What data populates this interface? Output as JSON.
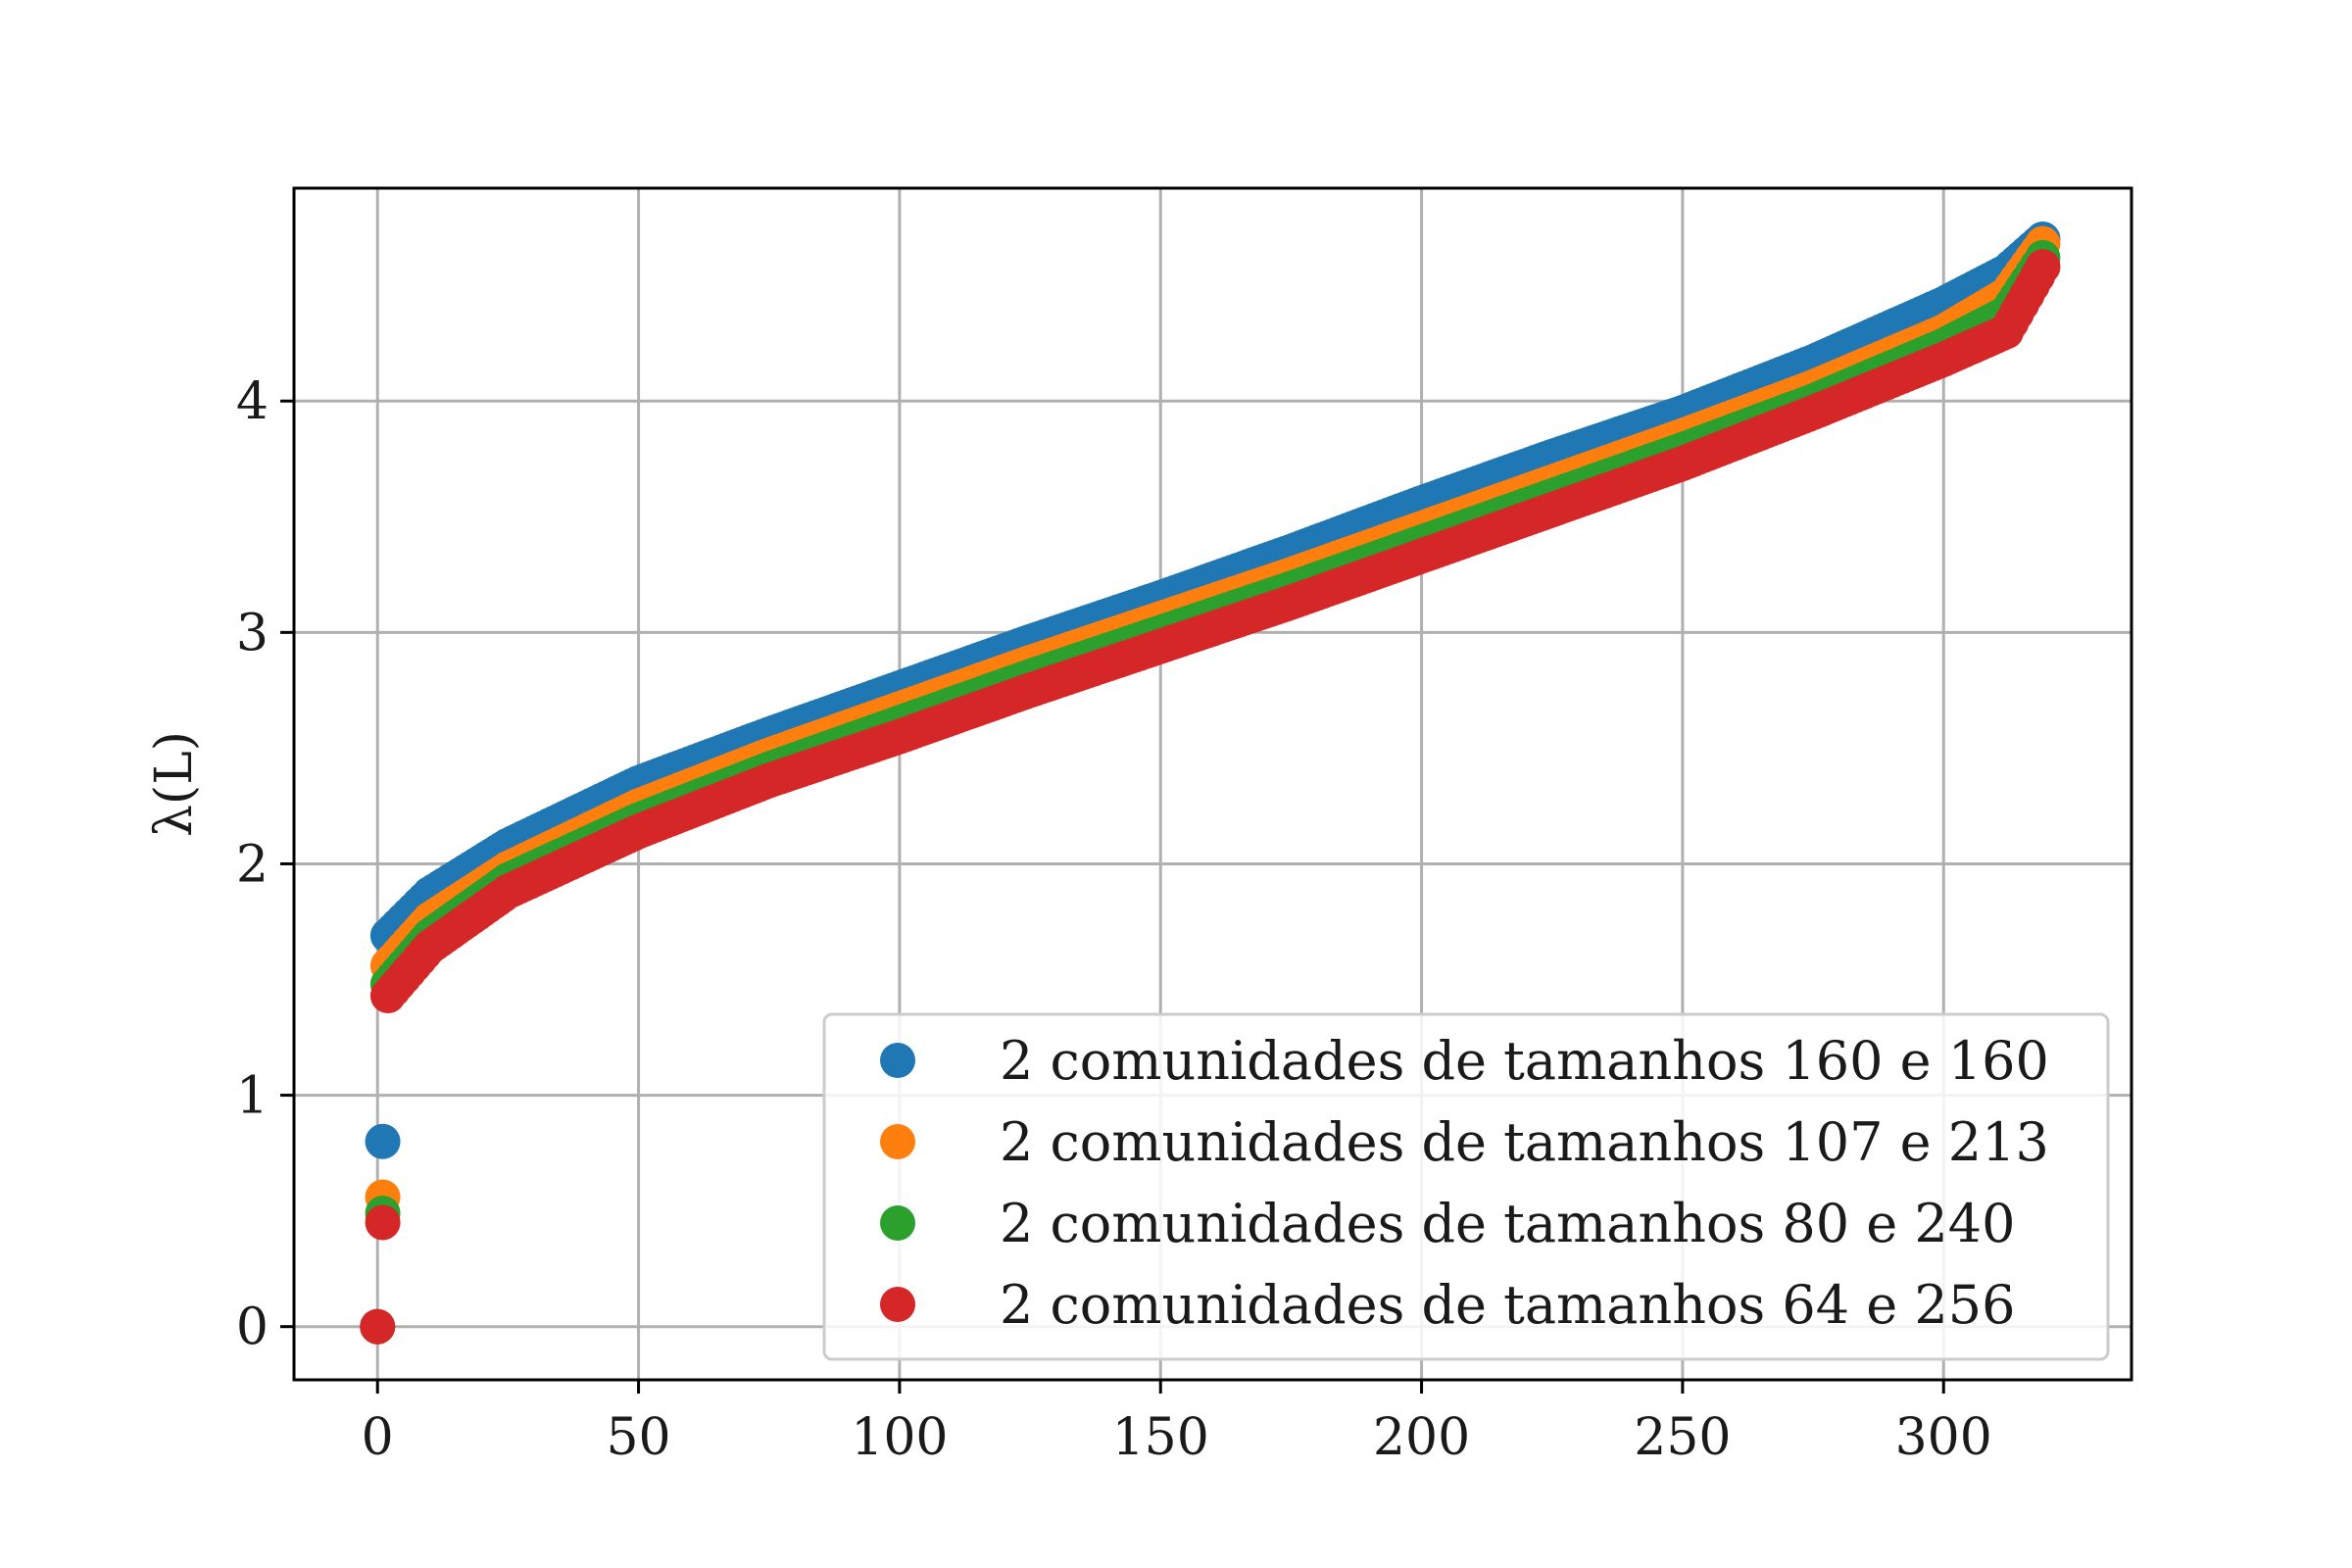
{
  "chart_data": {
    "type": "scatter",
    "title": "",
    "xlabel": "",
    "ylabel": "λ(L)",
    "xlim": [
      -16,
      336
    ],
    "ylim": [
      -0.23,
      4.92
    ],
    "xticks": [
      0,
      50,
      100,
      150,
      200,
      250,
      300
    ],
    "yticks": [
      0,
      1,
      2,
      3,
      4
    ],
    "grid": true,
    "legend_position": "lower right",
    "n_points": 320,
    "series": [
      {
        "name": "2 comunidades de tamanhos 160 e 160",
        "color": "#1f77b4",
        "low_eigenvalues": [
          0,
          0.8
        ],
        "curve": [
          [
            2,
            1.69
          ],
          [
            10,
            1.87
          ],
          [
            25,
            2.08
          ],
          [
            50,
            2.35
          ],
          [
            75,
            2.56
          ],
          [
            100,
            2.76
          ],
          [
            125,
            2.96
          ],
          [
            150,
            3.15
          ],
          [
            175,
            3.35
          ],
          [
            200,
            3.56
          ],
          [
            225,
            3.76
          ],
          [
            250,
            3.95
          ],
          [
            275,
            4.17
          ],
          [
            300,
            4.42
          ],
          [
            312,
            4.56
          ],
          [
            319,
            4.7
          ]
        ]
      },
      {
        "name": "2 comunidades de tamanhos 107 e 213",
        "color": "#ff7f0e",
        "low_eigenvalues": [
          0,
          0.56
        ],
        "curve": [
          [
            2,
            1.56
          ],
          [
            10,
            1.76
          ],
          [
            25,
            1.98
          ],
          [
            50,
            2.25
          ],
          [
            75,
            2.47
          ],
          [
            100,
            2.67
          ],
          [
            125,
            2.87
          ],
          [
            150,
            3.06
          ],
          [
            175,
            3.25
          ],
          [
            200,
            3.45
          ],
          [
            225,
            3.65
          ],
          [
            250,
            3.85
          ],
          [
            275,
            4.06
          ],
          [
            300,
            4.3
          ],
          [
            312,
            4.46
          ],
          [
            319,
            4.68
          ]
        ]
      },
      {
        "name": "2 comunidades de tamanhos 80 e 240",
        "color": "#2ca02c",
        "low_eigenvalues": [
          0,
          0.49
        ],
        "curve": [
          [
            2,
            1.48
          ],
          [
            10,
            1.69
          ],
          [
            25,
            1.93
          ],
          [
            50,
            2.19
          ],
          [
            75,
            2.41
          ],
          [
            100,
            2.61
          ],
          [
            125,
            2.81
          ],
          [
            150,
            3.0
          ],
          [
            175,
            3.19
          ],
          [
            200,
            3.39
          ],
          [
            225,
            3.59
          ],
          [
            250,
            3.79
          ],
          [
            275,
            4.0
          ],
          [
            300,
            4.24
          ],
          [
            312,
            4.38
          ],
          [
            319,
            4.62
          ]
        ]
      },
      {
        "name": "2 comunidades de tamanhos 64 e 256",
        "color": "#d62728",
        "low_eigenvalues": [
          0,
          0.45
        ],
        "curve": [
          [
            2,
            1.43
          ],
          [
            10,
            1.64
          ],
          [
            25,
            1.88
          ],
          [
            50,
            2.14
          ],
          [
            75,
            2.36
          ],
          [
            100,
            2.55
          ],
          [
            125,
            2.75
          ],
          [
            150,
            2.94
          ],
          [
            175,
            3.13
          ],
          [
            200,
            3.33
          ],
          [
            225,
            3.53
          ],
          [
            250,
            3.73
          ],
          [
            275,
            3.95
          ],
          [
            300,
            4.18
          ],
          [
            312,
            4.3
          ],
          [
            319,
            4.58
          ]
        ]
      }
    ]
  }
}
